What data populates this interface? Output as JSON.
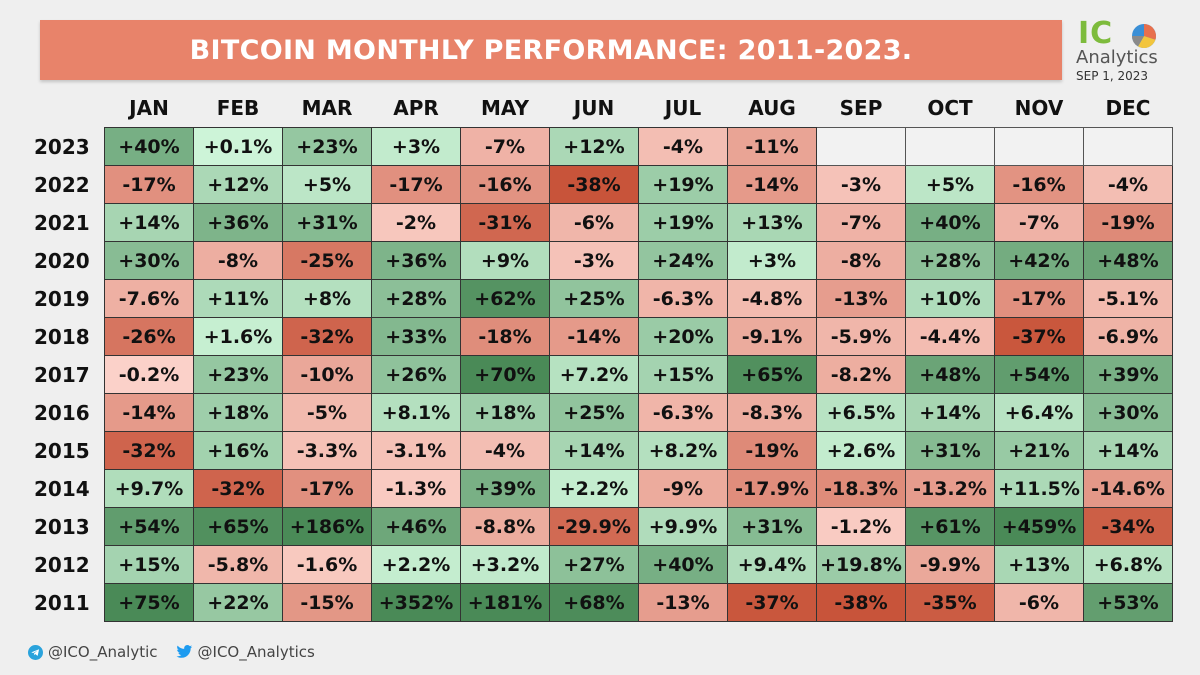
{
  "title": "BITCOIN MONTHLY PERFORMANCE: 2011-2023.",
  "logo": {
    "ico_part1": "IC",
    "ico_part2": "O",
    "subtitle": "Analytics",
    "date": "SEP 1, 2023"
  },
  "footer": {
    "telegram": "@ICO_Analytic",
    "twitter": "@ICO_Analytics"
  },
  "colors": {
    "positive_strong": "#4a8a57",
    "positive_light": "#cef5d9",
    "negative_strong": "#c8543a",
    "negative_light": "#fcd3cb",
    "banner": "#e8836a"
  },
  "chart_data": {
    "type": "heatmap",
    "title": "BITCOIN MONTHLY PERFORMANCE: 2011-2023.",
    "columns": [
      "JAN",
      "FEB",
      "MAR",
      "APR",
      "MAY",
      "JUN",
      "JUL",
      "AUG",
      "SEP",
      "OCT",
      "NOV",
      "DEC"
    ],
    "rows": [
      {
        "year": "2023",
        "labels": [
          "+40%",
          "+0.1%",
          "+23%",
          "+3%",
          "-7%",
          "+12%",
          "-4%",
          "-11%",
          "",
          "",
          "",
          ""
        ],
        "values": [
          40,
          0.1,
          23,
          3,
          -7,
          12,
          -4,
          -11,
          null,
          null,
          null,
          null
        ]
      },
      {
        "year": "2022",
        "labels": [
          "-17%",
          "+12%",
          "+5%",
          "-17%",
          "-16%",
          "-38%",
          "+19%",
          "-14%",
          "-3%",
          "+5%",
          "-16%",
          "-4%"
        ],
        "values": [
          -17,
          12,
          5,
          -17,
          -16,
          -38,
          19,
          -14,
          -3,
          5,
          -16,
          -4
        ]
      },
      {
        "year": "2021",
        "labels": [
          "+14%",
          "+36%",
          "+31%",
          "-2%",
          "-31%",
          "-6%",
          "+19%",
          "+13%",
          "-7%",
          "+40%",
          "-7%",
          "-19%"
        ],
        "values": [
          14,
          36,
          31,
          -2,
          -31,
          -6,
          19,
          13,
          -7,
          40,
          -7,
          -19
        ]
      },
      {
        "year": "2020",
        "labels": [
          "+30%",
          "-8%",
          "-25%",
          "+36%",
          "+9%",
          "-3%",
          "+24%",
          "+3%",
          "-8%",
          "+28%",
          "+42%",
          "+48%"
        ],
        "values": [
          30,
          -8,
          -25,
          36,
          9,
          -3,
          24,
          3,
          -8,
          28,
          42,
          48
        ]
      },
      {
        "year": "2019",
        "labels": [
          "-7.6%",
          "+11%",
          "+8%",
          "+28%",
          "+62%",
          "+25%",
          "-6.3%",
          "-4.8%",
          "-13%",
          "+10%",
          "-17%",
          "-5.1%"
        ],
        "values": [
          -7.6,
          11,
          8,
          28,
          62,
          25,
          -6.3,
          -4.8,
          -13,
          10,
          -17,
          -5.1
        ]
      },
      {
        "year": "2018",
        "labels": [
          "-26%",
          "+1.6%",
          "-32%",
          "+33%",
          "-18%",
          "-14%",
          "+20%",
          "-9.1%",
          "-5.9%",
          "-4.4%",
          "-37%",
          "-6.9%"
        ],
        "values": [
          -26,
          1.6,
          -32,
          33,
          -18,
          -14,
          20,
          -9.1,
          -5.9,
          -4.4,
          -37,
          -6.9
        ]
      },
      {
        "year": "2017",
        "labels": [
          "-0.2%",
          "+23%",
          "-10%",
          "+26%",
          "+70%",
          "+7.2%",
          "+15%",
          "+65%",
          "-8.2%",
          "+48%",
          "+54%",
          "+39%"
        ],
        "values": [
          -0.2,
          23,
          -10,
          26,
          70,
          7.2,
          15,
          65,
          -8.2,
          48,
          54,
          39
        ]
      },
      {
        "year": "2016",
        "labels": [
          "-14%",
          "+18%",
          "-5%",
          "+8.1%",
          "+18%",
          "+25%",
          "-6.3%",
          "-8.3%",
          "+6.5%",
          "+14%",
          "+6.4%",
          "+30%"
        ],
        "values": [
          -14,
          18,
          -5,
          8.1,
          18,
          25,
          -6.3,
          -8.3,
          6.5,
          14,
          6.4,
          30
        ]
      },
      {
        "year": "2015",
        "labels": [
          "-32%",
          "+16%",
          "-3.3%",
          "-3.1%",
          "-4%",
          "+14%",
          "+8.2%",
          "-19%",
          "+2.6%",
          "+31%",
          "+21%",
          "+14%"
        ],
        "values": [
          -32,
          16,
          -3.3,
          -3.1,
          -4,
          14,
          8.2,
          -19,
          2.6,
          31,
          21,
          14
        ]
      },
      {
        "year": "2014",
        "labels": [
          "+9.7%",
          "-32%",
          "-17%",
          "-1.3%",
          "+39%",
          "+2.2%",
          "-9%",
          "-17.9%",
          "-18.3%",
          "-13.2%",
          "+11.5%",
          "-14.6%"
        ],
        "values": [
          9.7,
          -32,
          -17,
          -1.3,
          39,
          2.2,
          -9,
          -17.9,
          -18.3,
          -13.2,
          11.5,
          -14.6
        ]
      },
      {
        "year": "2013",
        "labels": [
          "+54%",
          "+65%",
          "+186%",
          "+46%",
          "-8.8%",
          "-29.9%",
          "+9.9%",
          "+31%",
          "-1.2%",
          "+61%",
          "+459%",
          "-34%"
        ],
        "values": [
          54,
          65,
          186,
          46,
          -8.8,
          -29.9,
          9.9,
          31,
          -1.2,
          61,
          459,
          -34
        ]
      },
      {
        "year": "2012",
        "labels": [
          "+15%",
          "-5.8%",
          "-1.6%",
          "+2.2%",
          "+3.2%",
          "+27%",
          "+40%",
          "+9.4%",
          "+19.8%",
          "-9.9%",
          "+13%",
          "+6.8%"
        ],
        "values": [
          15,
          -5.8,
          -1.6,
          2.2,
          3.2,
          27,
          40,
          9.4,
          19.8,
          -9.9,
          13,
          6.8
        ]
      },
      {
        "year": "2011",
        "labels": [
          "+75%",
          "+22%",
          "-15%",
          "+352%",
          "+181%",
          "+68%",
          "-13%",
          "-37%",
          "-38%",
          "-35%",
          "-6%",
          "+53%"
        ],
        "values": [
          75,
          22,
          -15,
          352,
          181,
          68,
          -13,
          -37,
          -38,
          -35,
          -6,
          53
        ]
      }
    ]
  }
}
